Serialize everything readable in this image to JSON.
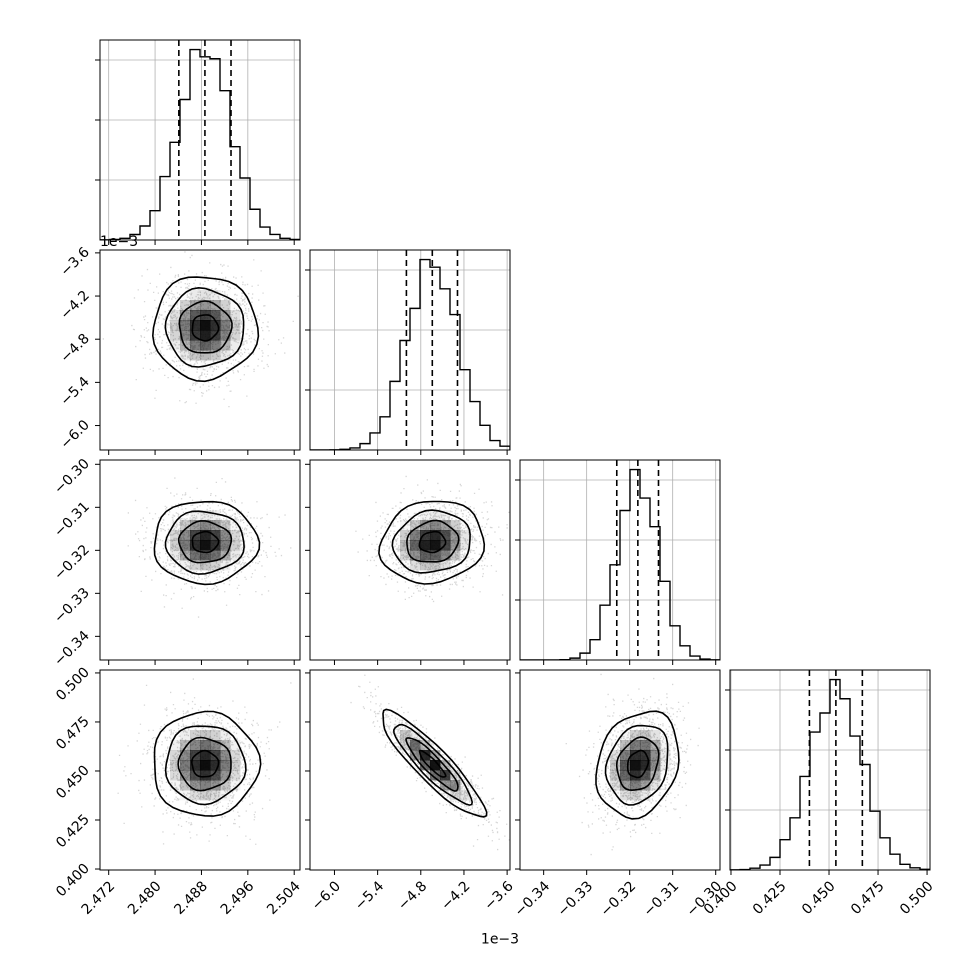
{
  "chart_data": {
    "type": "corner",
    "grid": true,
    "parameters": [
      {
        "range": [
          2.4705,
          2.505
        ],
        "ticks": [
          2.472,
          2.48,
          2.488,
          2.496,
          2.504
        ],
        "tick_labels": [
          "2.472",
          "2.480",
          "2.488",
          "2.496",
          "2.504"
        ],
        "offset_text": "",
        "median": 2.4886,
        "quantiles": [
          2.4841,
          2.4886,
          2.4931
        ],
        "sigma": 0.0045,
        "ylim": [
          -0.0059,
          0.0059
        ]
      },
      {
        "range": [
          -0.00634,
          -0.00356
        ],
        "ticks": [
          -0.006,
          -0.0054,
          -0.0048,
          -0.0042,
          -0.0036
        ],
        "tick_labels": [
          "−6.0",
          "−5.4",
          "−4.8",
          "−4.2",
          "−3.6"
        ],
        "offset_text": "1e−3",
        "median": -0.00464,
        "quantiles": [
          -0.005,
          -0.00464,
          -0.00429
        ],
        "sigma": 0.00036
      },
      {
        "range": [
          -0.3455,
          -0.299
        ],
        "ticks": [
          -0.34,
          -0.33,
          -0.32,
          -0.31,
          -0.3
        ],
        "tick_labels": [
          "−0.34",
          "−0.33",
          "−0.32",
          "−0.31",
          "−0.30"
        ],
        "offset_text": "",
        "median": -0.3181,
        "quantiles": [
          -0.323,
          -0.3181,
          -0.3133
        ],
        "sigma": 0.0048
      },
      {
        "range": [
          0.3995,
          0.5015
        ],
        "ticks": [
          0.4,
          0.425,
          0.45,
          0.475,
          0.5
        ],
        "tick_labels": [
          "0.400",
          "0.425",
          "0.450",
          "0.475",
          "0.500"
        ],
        "offset_text": "",
        "median": 0.4535,
        "quantiles": [
          0.44,
          0.4535,
          0.467
        ],
        "sigma": 0.0135
      }
    ],
    "correlations": [
      {
        "pair": [
          1,
          0
        ],
        "rho": 0.0
      },
      {
        "pair": [
          2,
          0
        ],
        "rho": 0.0
      },
      {
        "pair": [
          2,
          1
        ],
        "rho": 0.1
      },
      {
        "pair": [
          3,
          0
        ],
        "rho": 0.0
      },
      {
        "pair": [
          3,
          1
        ],
        "rho": -0.9
      },
      {
        "pair": [
          3,
          2
        ],
        "rho": 0.2
      }
    ],
    "histogram_bins": 20,
    "contour_levels_sigma": [
      0.5,
      1.0,
      1.5,
      2.0
    ]
  }
}
